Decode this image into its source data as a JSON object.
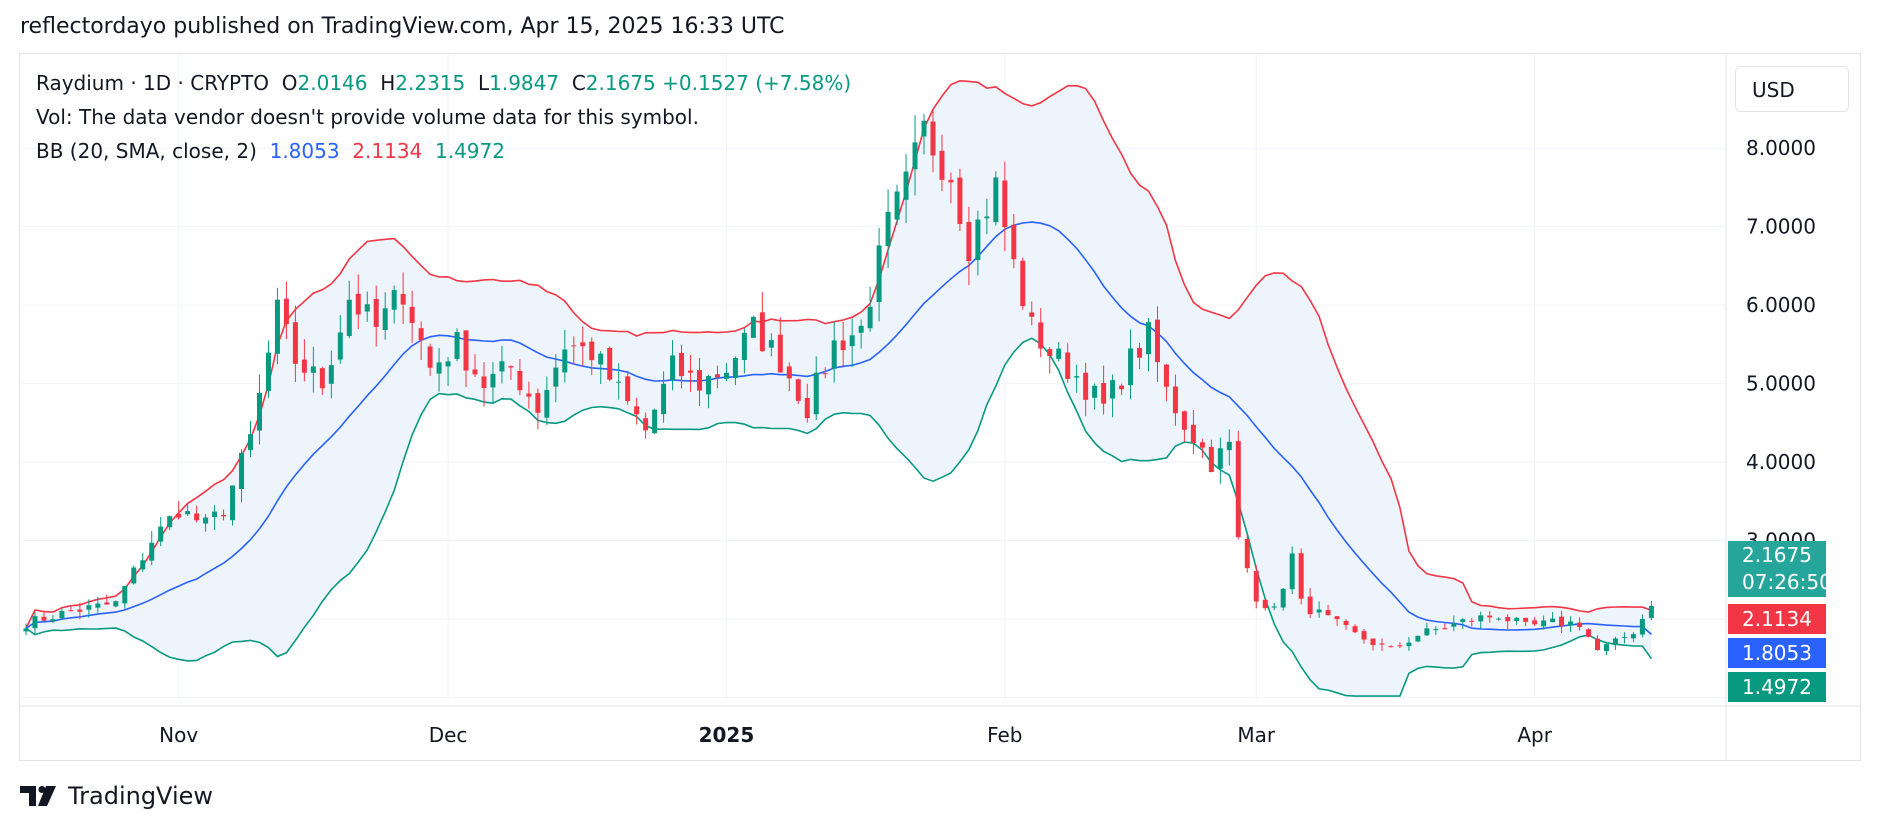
{
  "publisher": "reflectordayo published on TradingView.com, Apr 15, 2025 16:33 UTC",
  "legend": {
    "symbol": "Raydium · 1D · CRYPTO",
    "o_label": "O",
    "o_val": "2.0146",
    "h_label": "H",
    "h_val": "2.2315",
    "l_label": "L",
    "l_val": "1.9847",
    "c_label": "C",
    "c_val": "2.1675",
    "change": "+0.1527 (+7.58%)",
    "vol": "Vol: The data vendor doesn't provide volume data for this symbol.",
    "bb_label": "BB (20, SMA, close, 2)",
    "bb_basis": "1.8053",
    "bb_upper": "2.1134",
    "bb_lower": "1.4972"
  },
  "currency": "USD",
  "price_tags": {
    "close": "2.1675",
    "countdown": "07:26:50",
    "upper": "2.1134",
    "basis": "1.8053",
    "lower": "1.4972"
  },
  "brand": "TradingView",
  "colors": {
    "up": "#089981",
    "down": "#f23645",
    "basis": "#2962ff",
    "upper": "#f23645",
    "lower": "#089981",
    "fill": "#eef4fb",
    "grid": "#f0f3fa"
  },
  "chart_data": {
    "type": "candlestick",
    "title": "Raydium · 1D · CRYPTO",
    "ylim": [
      0.97,
      9.2
    ],
    "y_ticks": [
      "3.0000",
      "4.0000",
      "5.0000",
      "6.0000",
      "7.0000",
      "8.0000"
    ],
    "y_tick_values": [
      3,
      4,
      5,
      6,
      7,
      8
    ],
    "x_ticks": [
      {
        "label": "Nov",
        "bar": 17
      },
      {
        "label": "Dec",
        "bar": 47
      },
      {
        "label": "2025",
        "bar": 78,
        "bold": true
      },
      {
        "label": "Feb",
        "bar": 109
      },
      {
        "label": "Mar",
        "bar": 137
      },
      {
        "label": "Apr",
        "bar": 168
      }
    ],
    "bar_count": 182,
    "close_anchors": [
      [
        0,
        1.95
      ],
      [
        5,
        2.1
      ],
      [
        10,
        2.2
      ],
      [
        14,
        3.0
      ],
      [
        17,
        3.4
      ],
      [
        20,
        3.2
      ],
      [
        22,
        3.4
      ],
      [
        25,
        4.3
      ],
      [
        28,
        5.9
      ],
      [
        30,
        5.3
      ],
      [
        33,
        5.0
      ],
      [
        36,
        6.1
      ],
      [
        39,
        5.7
      ],
      [
        42,
        6.2
      ],
      [
        45,
        5.2
      ],
      [
        48,
        5.5
      ],
      [
        51,
        5.0
      ],
      [
        54,
        5.2
      ],
      [
        57,
        4.7
      ],
      [
        60,
        5.5
      ],
      [
        63,
        5.4
      ],
      [
        66,
        4.9
      ],
      [
        69,
        4.4
      ],
      [
        72,
        5.2
      ],
      [
        75,
        5.0
      ],
      [
        78,
        5.2
      ],
      [
        81,
        5.7
      ],
      [
        84,
        5.3
      ],
      [
        87,
        4.7
      ],
      [
        90,
        5.5
      ],
      [
        93,
        5.7
      ],
      [
        96,
        7.0
      ],
      [
        98,
        7.5
      ],
      [
        100,
        8.2
      ],
      [
        103,
        7.7
      ],
      [
        105,
        6.8
      ],
      [
        108,
        7.5
      ],
      [
        110,
        6.5
      ],
      [
        112,
        5.7
      ],
      [
        114,
        5.4
      ],
      [
        117,
        5.1
      ],
      [
        120,
        4.7
      ],
      [
        123,
        5.3
      ],
      [
        125,
        5.6
      ],
      [
        127,
        4.9
      ],
      [
        129,
        4.5
      ],
      [
        132,
        4.0
      ],
      [
        134,
        4.2
      ],
      [
        135,
        3.0
      ],
      [
        137,
        2.3
      ],
      [
        139,
        2.1
      ],
      [
        141,
        2.8
      ],
      [
        142,
        2.2
      ],
      [
        145,
        2.0
      ],
      [
        148,
        1.8
      ],
      [
        152,
        1.6
      ],
      [
        155,
        1.8
      ],
      [
        158,
        1.9
      ],
      [
        161,
        2.0
      ],
      [
        164,
        2.05
      ],
      [
        167,
        1.9
      ],
      [
        170,
        1.95
      ],
      [
        173,
        1.95
      ],
      [
        175,
        1.6
      ],
      [
        177,
        1.7
      ],
      [
        179,
        1.85
      ],
      [
        181,
        2.1675
      ]
    ],
    "last_bar": {
      "open": 2.0146,
      "high": 2.2315,
      "low": 1.9847,
      "close": 2.1675
    },
    "bollinger": {
      "period": 20,
      "ma": "SMA",
      "source": "close",
      "stdev": 2,
      "basis_last": 1.8053,
      "upper_last": 2.1134,
      "lower_last": 1.4972
    }
  }
}
